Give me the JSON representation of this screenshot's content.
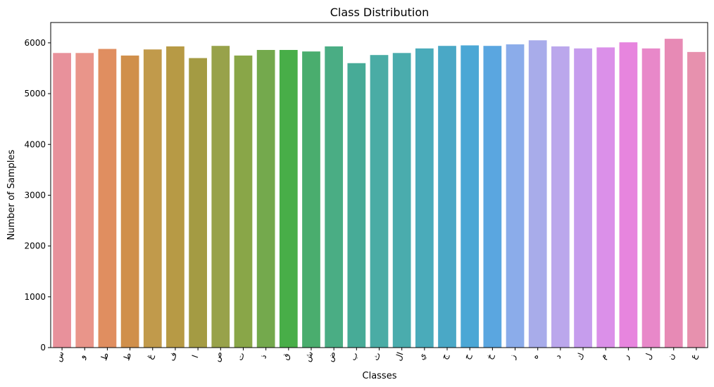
{
  "chart_data": {
    "type": "bar",
    "title": "Class Distribution",
    "xlabel": "Classes",
    "ylabel": "Number of Samples",
    "ylim": [
      0,
      6400
    ],
    "yticks": [
      0,
      1000,
      2000,
      3000,
      4000,
      5000,
      6000
    ],
    "grid": false,
    "categories": [
      "س",
      "و",
      "ط",
      "ط",
      "غ",
      "ف",
      "ا",
      "ص",
      "ت",
      "ذ",
      "ق",
      "ش",
      "ض",
      "ب",
      "ث",
      "ال",
      "ي",
      "ج",
      "ح",
      "خ",
      "ز",
      "ه",
      "د",
      "ك",
      "م",
      "ر",
      "ل",
      "ن",
      "ع"
    ],
    "values": [
      5800,
      5800,
      5880,
      5750,
      5870,
      5930,
      5700,
      5940,
      5750,
      5860,
      5860,
      5830,
      5930,
      5600,
      5760,
      5800,
      5890,
      5940,
      5950,
      5940,
      5970,
      6050,
      5930,
      5890,
      5910,
      6010,
      5890,
      6080,
      5820
    ],
    "colors": [
      "#e8919b",
      "#e9958a",
      "#e08e60",
      "#d08f4b",
      "#c19a4b",
      "#b79a45",
      "#a49b43",
      "#98a24a",
      "#89a648",
      "#74a94d",
      "#48ae48",
      "#4aad6e",
      "#4aad84",
      "#47ab97",
      "#4aaca5",
      "#4aacad",
      "#4aabba",
      "#4aa8c6",
      "#4ba7d5",
      "#5aa6e0",
      "#8bacea",
      "#a8acea",
      "#bba7ec",
      "#c69ded",
      "#db90e9",
      "#e785de",
      "#e888c9",
      "#e78ab5",
      "#e791ae"
    ]
  }
}
